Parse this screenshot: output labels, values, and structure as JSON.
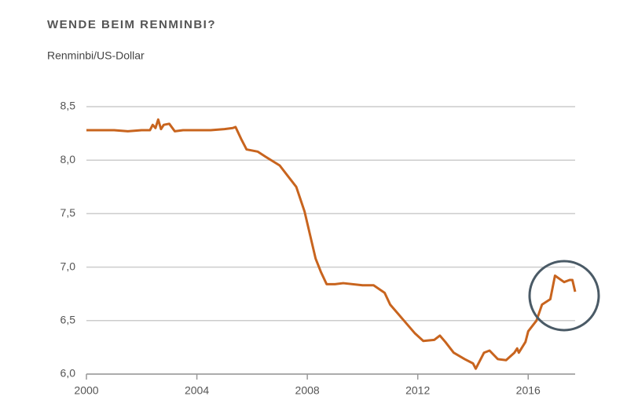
{
  "chart_data": {
    "type": "line",
    "title": "WENDE BEIM RENMINBI?",
    "subtitle": "Renminbi/US-Dollar",
    "x": [
      2000.0,
      2000.5,
      2001.0,
      2001.5,
      2002.0,
      2002.3,
      2002.4,
      2002.5,
      2002.6,
      2002.7,
      2002.8,
      2003.0,
      2003.2,
      2003.5,
      2004.0,
      2004.5,
      2005.0,
      2005.3,
      2005.4,
      2005.6,
      2005.8,
      2006.2,
      2006.5,
      2007.0,
      2007.3,
      2007.6,
      2007.9,
      2008.3,
      2008.5,
      2008.7,
      2009.0,
      2009.3,
      2010.0,
      2010.4,
      2010.8,
      2011.0,
      2011.5,
      2011.9,
      2012.2,
      2012.6,
      2012.8,
      2013.0,
      2013.3,
      2013.7,
      2014.0,
      2014.1,
      2014.4,
      2014.6,
      2014.9,
      2015.2,
      2015.5,
      2015.6,
      2015.66,
      2015.9,
      2016.0,
      2016.3,
      2016.5,
      2016.8,
      2016.97,
      2017.3,
      2017.5,
      2017.6,
      2017.7
    ],
    "series": [
      {
        "name": "Renminbi/US-Dollar",
        "color": "#c8641e",
        "values": [
          8.28,
          8.28,
          8.28,
          8.27,
          8.28,
          8.28,
          8.33,
          8.3,
          8.38,
          8.29,
          8.33,
          8.34,
          8.27,
          8.28,
          8.28,
          8.28,
          8.29,
          8.3,
          8.31,
          8.2,
          8.1,
          8.08,
          8.03,
          7.95,
          7.85,
          7.75,
          7.52,
          7.08,
          6.95,
          6.84,
          6.84,
          6.85,
          6.83,
          6.83,
          6.76,
          6.65,
          6.5,
          6.38,
          6.31,
          6.32,
          6.36,
          6.3,
          6.2,
          6.14,
          6.1,
          6.05,
          6.2,
          6.22,
          6.14,
          6.13,
          6.2,
          6.24,
          6.2,
          6.3,
          6.4,
          6.5,
          6.65,
          6.7,
          6.92,
          6.86,
          6.88,
          6.88,
          6.77
        ]
      }
    ],
    "xlim": [
      2000,
      2017.7
    ],
    "xticks": [
      2000,
      2004,
      2008,
      2012,
      2016
    ],
    "ylim": [
      6.0,
      8.5
    ],
    "yticks": [
      {
        "value": 6.0,
        "label": "6,0"
      },
      {
        "value": 6.5,
        "label": "6,5"
      },
      {
        "value": 7.0,
        "label": "7,0"
      },
      {
        "value": 7.5,
        "label": "7,5"
      },
      {
        "value": 8.0,
        "label": "8,0"
      },
      {
        "value": 8.5,
        "label": "8,5"
      }
    ],
    "grid": true
  }
}
